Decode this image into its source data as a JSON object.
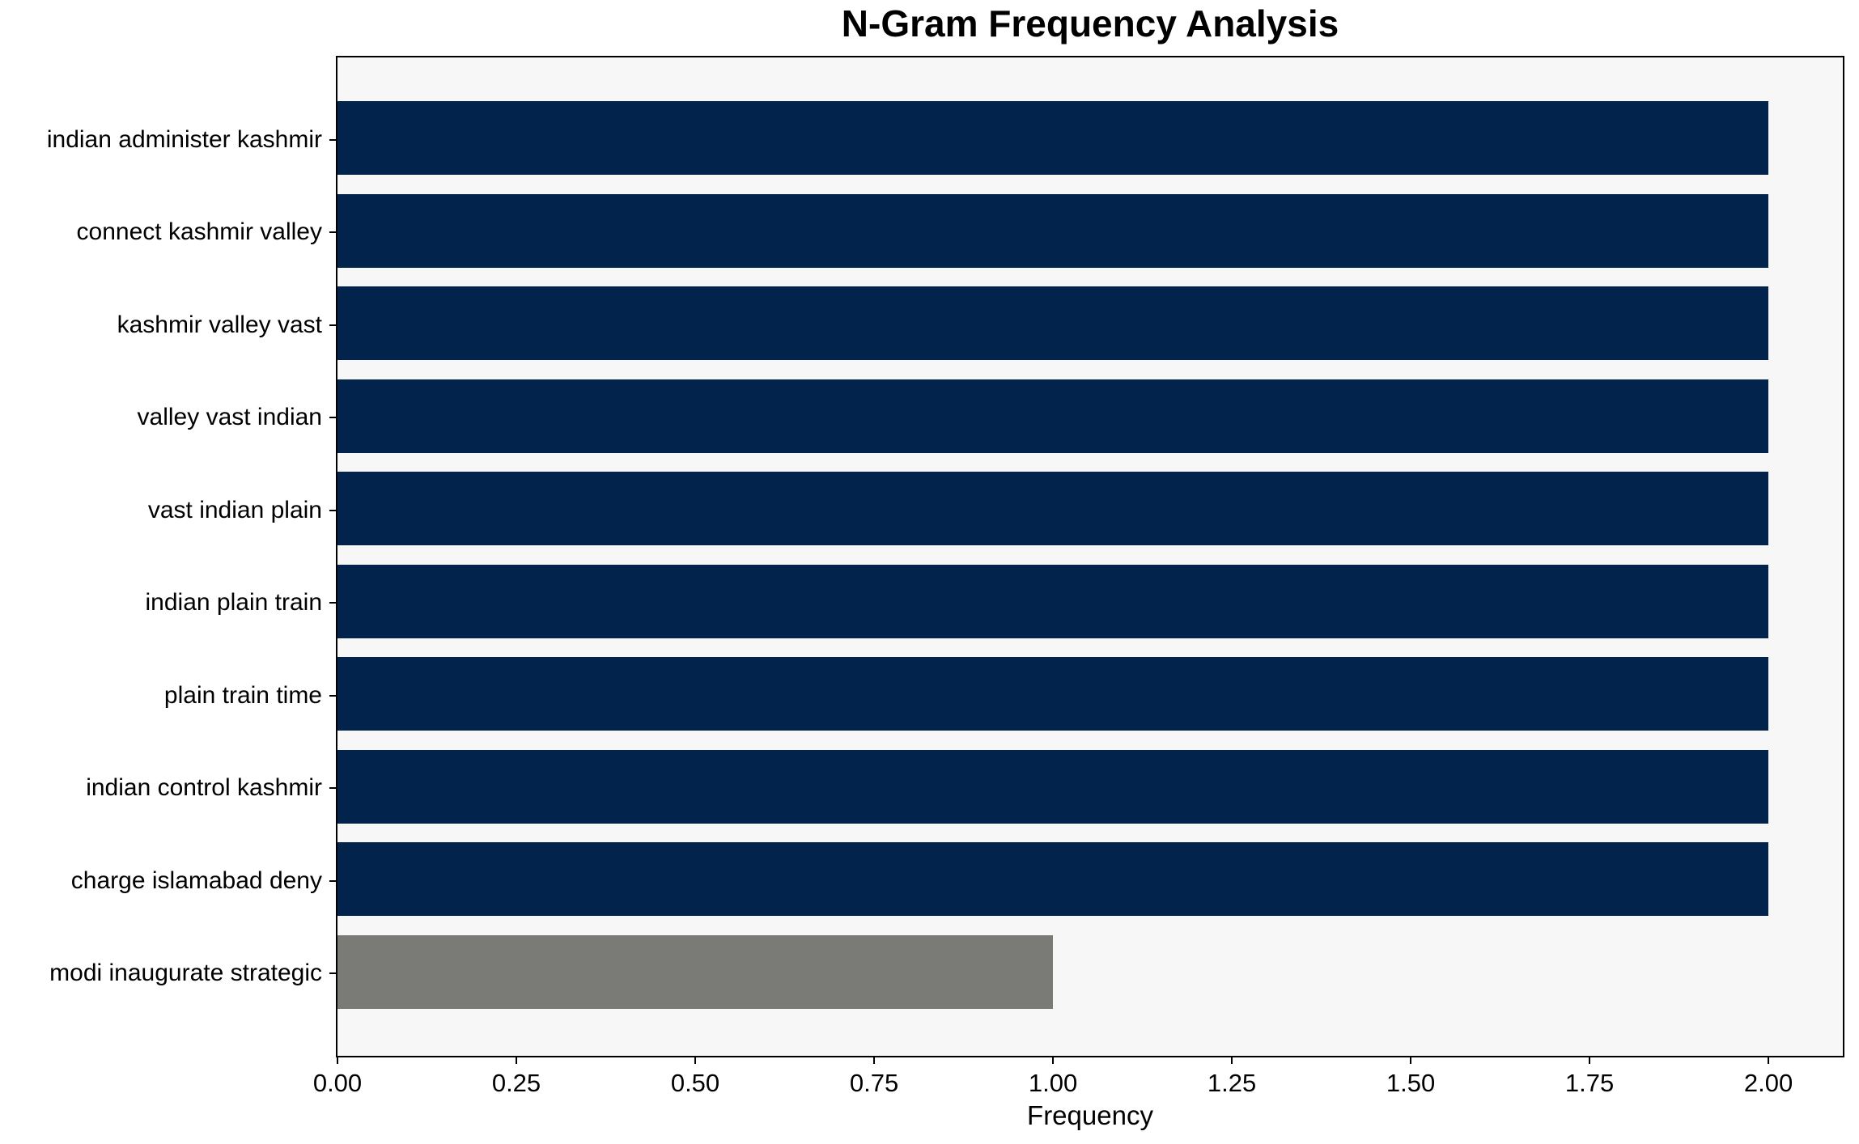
{
  "chart_data": {
    "type": "bar",
    "orientation": "horizontal",
    "title": "N-Gram Frequency Analysis",
    "xlabel": "Frequency",
    "ylabel": "",
    "categories": [
      "indian administer kashmir",
      "connect kashmir valley",
      "kashmir valley vast",
      "valley vast indian",
      "vast indian plain",
      "indian plain train",
      "plain train time",
      "indian control kashmir",
      "charge islamabad deny",
      "modi inaugurate strategic"
    ],
    "values": [
      2,
      2,
      2,
      2,
      2,
      2,
      2,
      2,
      2,
      1
    ],
    "bar_colors": [
      "#02234c",
      "#02234c",
      "#02234c",
      "#02234c",
      "#02234c",
      "#02234c",
      "#02234c",
      "#02234c",
      "#02234c",
      "#7a7a76"
    ],
    "x_ticks": [
      "0.00",
      "0.25",
      "0.50",
      "0.75",
      "1.00",
      "1.25",
      "1.50",
      "1.75",
      "2.00"
    ],
    "x_tick_values": [
      0,
      0.25,
      0.5,
      0.75,
      1.0,
      1.25,
      1.5,
      1.75,
      2.0
    ],
    "xlim": [
      0,
      2.104
    ],
    "grid": false,
    "legend": null,
    "colors": {
      "bar_primary": "#02234c",
      "bar_highlight": "#7a7a76",
      "plot_background": "#f7f7f7",
      "figure_background": "#ffffff",
      "axis": "#000000"
    }
  }
}
